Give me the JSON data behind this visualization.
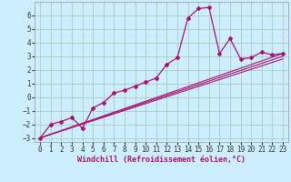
{
  "xlabel": "Windchill (Refroidissement éolien,°C)",
  "bg_color": "#cceeff",
  "grid_color": "#aaccbb",
  "line_color": "#aa1177",
  "xlim": [
    -0.5,
    23.5
  ],
  "ylim": [
    -3.3,
    7.0
  ],
  "xticks": [
    0,
    1,
    2,
    3,
    4,
    5,
    6,
    7,
    8,
    9,
    10,
    11,
    12,
    13,
    14,
    15,
    16,
    17,
    18,
    19,
    20,
    21,
    22,
    23
  ],
  "yticks": [
    -3,
    -2,
    -1,
    0,
    1,
    2,
    3,
    4,
    5,
    6
  ],
  "series": [
    {
      "x": [
        0,
        1,
        2,
        3,
        4,
        5,
        6,
        7,
        8,
        9,
        10,
        11,
        12,
        13,
        14,
        15,
        16,
        17,
        18,
        19,
        20,
        21,
        22,
        23
      ],
      "y": [
        -3.0,
        -2.0,
        -1.8,
        -1.5,
        -2.3,
        -0.8,
        -0.4,
        0.3,
        0.5,
        0.8,
        1.1,
        1.4,
        2.4,
        2.9,
        5.8,
        6.5,
        6.6,
        3.2,
        4.3,
        2.8,
        2.9,
        3.3,
        3.1,
        3.2
      ]
    },
    {
      "x": [
        0,
        23
      ],
      "y": [
        -3.0,
        3.2
      ]
    },
    {
      "x": [
        0,
        23
      ],
      "y": [
        -3.0,
        3.0
      ]
    },
    {
      "x": [
        0,
        23
      ],
      "y": [
        -3.0,
        2.8
      ]
    }
  ],
  "xlabel_fontsize": 6,
  "tick_fontsize": 5.5
}
